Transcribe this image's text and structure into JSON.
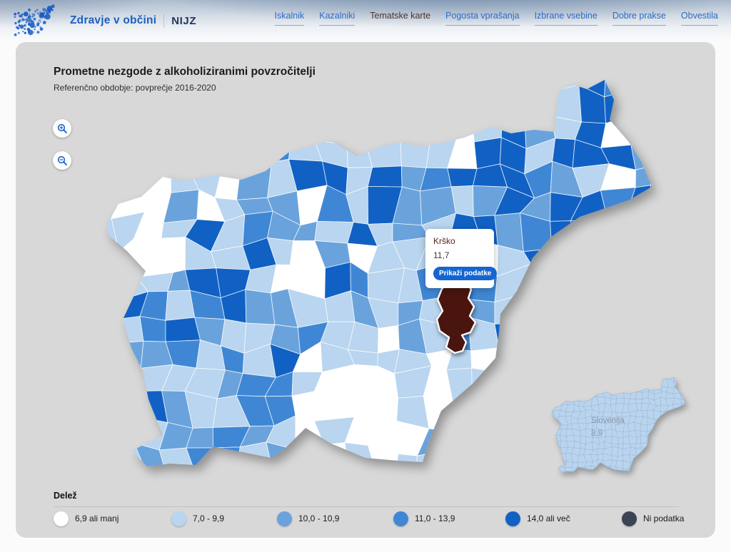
{
  "header": {
    "brand": "Zdravje v občini",
    "brand_secondary": "NIJZ",
    "logo_icon": "dotted-slovenia-logo",
    "nav": [
      {
        "label": "Iskalnik",
        "active": false
      },
      {
        "label": "Kazalniki",
        "active": false
      },
      {
        "label": "Tematske karte",
        "active": true
      },
      {
        "label": "Pogosta vprašanja",
        "active": false
      },
      {
        "label": "Izbrane vsebine",
        "active": false
      },
      {
        "label": "Dobre prakse",
        "active": false
      },
      {
        "label": "Obvestila",
        "active": false
      }
    ]
  },
  "map": {
    "title": "Prometne nezgode z alkoholiziranimi povzročitelji",
    "subtitle": "Referenčno obdobje: povprečje 2016-2020",
    "zoom_in_icon": "magnifier-plus",
    "zoom_out_icon": "magnifier-minus",
    "tooltip": {
      "municipality": "Krško",
      "value": "11,7",
      "button_label": "Prikaži podatke"
    },
    "inset": {
      "label": "Slovenija",
      "value": "8,9"
    }
  },
  "legend": {
    "title": "Delež",
    "items": [
      {
        "label": "6,9 ali manj",
        "color": "#ffffff"
      },
      {
        "label": "7,0 - 9,9",
        "color": "#b9d5ef"
      },
      {
        "label": "10,0 - 10,9",
        "color": "#6aa3dc"
      },
      {
        "label": "11,0 - 13,9",
        "color": "#3f87d4"
      },
      {
        "label": "14,0 ali več",
        "color": "#1161c4"
      },
      {
        "label": "Ni podatka",
        "color": "#3c4354"
      }
    ]
  },
  "colors": {
    "highlight_hover": "#4a150e",
    "accent_button": "#1565d1",
    "link": "#2e6cc2",
    "active_link": "#4a342a",
    "panel_background": "#d8d8d8",
    "inset_fill": "#bad4ee",
    "logo_dot": "#1b5ec2"
  }
}
